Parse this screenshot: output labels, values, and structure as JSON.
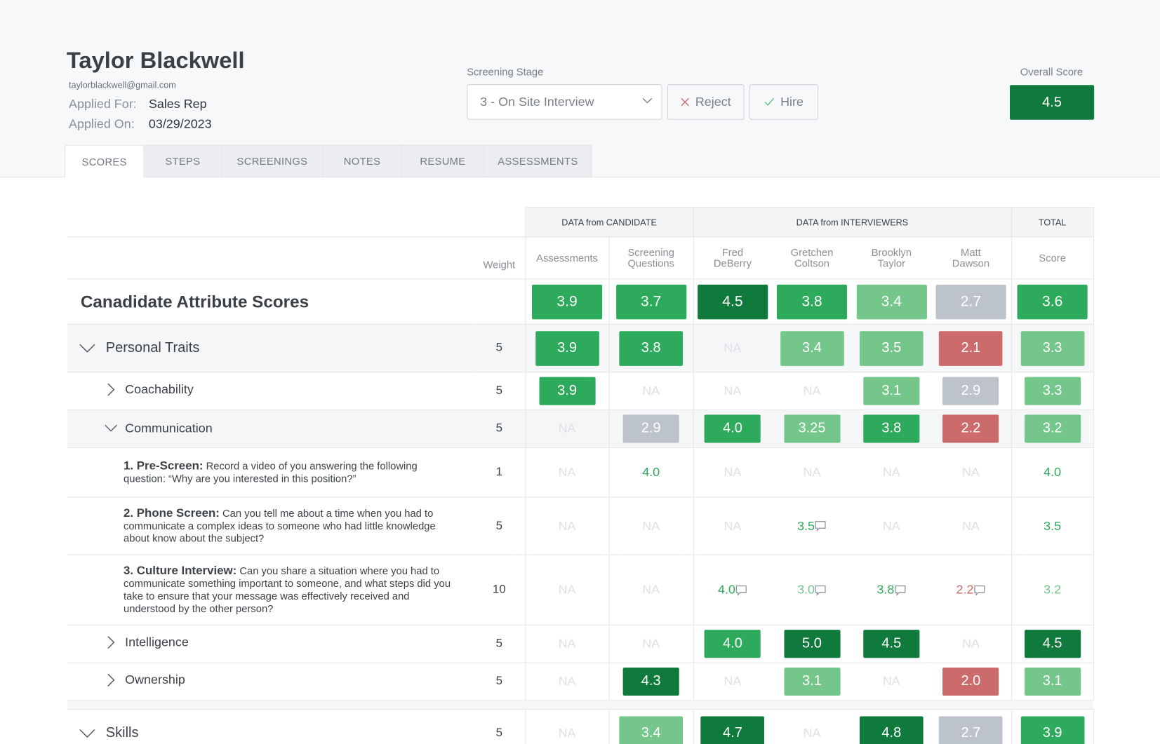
{
  "candidate": {
    "name": "Taylor Blackwell",
    "email": "taylorblackwell@gmail.com",
    "applied_for_label": "Applied For:",
    "applied_for": "Sales Rep",
    "applied_on_label": "Applied On:",
    "applied_on": "03/29/2023"
  },
  "stage": {
    "label": "Screening Stage",
    "value": "3 - On Site Interview"
  },
  "actions": {
    "reject": "Reject",
    "hire": "Hire"
  },
  "overall": {
    "label": "Overall Score",
    "value": "4.5"
  },
  "tabs": [
    "SCORES",
    "STEPS",
    "SCREENINGS",
    "NOTES",
    "RESUME",
    "ASSESSMENTS"
  ],
  "active_tab": "SCORES",
  "colors": {
    "dark": "#0f7a3c",
    "mid": "#2eaa5c",
    "light": "#74c68b",
    "gray": "#bcc3cb",
    "red": "#cc6b6b",
    "na": "#dde1e6"
  },
  "table": {
    "groups": {
      "candidate": "DATA from CANDIDATE",
      "interviewers": "DATA from INTERVIEWERS",
      "total": "TOTAL"
    },
    "weight_header": "Weight",
    "columns": [
      "Assessments",
      "Screening Questions",
      "Fred DeBerry",
      "Gretchen Coltson",
      "Brooklyn Taylor",
      "Matt Dawson",
      "Score"
    ],
    "rows": [
      {
        "type": "ov",
        "label": "Canadidate Attribute Scores",
        "weight": "",
        "cells": [
          [
            "3.9",
            "mid"
          ],
          [
            "3.7",
            "mid"
          ],
          [
            "4.5",
            "dark"
          ],
          [
            "3.8",
            "mid"
          ],
          [
            "3.4",
            "light"
          ],
          [
            "2.7",
            "gray"
          ],
          [
            "3.6",
            "mid"
          ]
        ]
      },
      {
        "type": "cat",
        "label": "Personal Traits",
        "expanded": true,
        "weight": "5",
        "cells": [
          [
            "3.9",
            "mid"
          ],
          [
            "3.8",
            "mid"
          ],
          [
            "NA",
            "na"
          ],
          [
            "3.4",
            "light"
          ],
          [
            "3.5",
            "light"
          ],
          [
            "2.1",
            "red"
          ],
          [
            "3.3",
            "light"
          ]
        ]
      },
      {
        "type": "sub",
        "label": "Coachability",
        "expanded": false,
        "weight": "5",
        "cells": [
          [
            "3.9",
            "mid"
          ],
          [
            "NA",
            "na"
          ],
          [
            "NA",
            "na"
          ],
          [
            "NA",
            "na"
          ],
          [
            "3.1",
            "light"
          ],
          [
            "2.9",
            "gray"
          ],
          [
            "3.3",
            "light"
          ]
        ]
      },
      {
        "type": "sub",
        "label": "Communication",
        "expanded": true,
        "weight": "5",
        "bg": true,
        "cells": [
          [
            "NA",
            "na"
          ],
          [
            "2.9",
            "gray"
          ],
          [
            "4.0",
            "mid"
          ],
          [
            "3.25",
            "light"
          ],
          [
            "3.8",
            "mid"
          ],
          [
            "2.2",
            "red"
          ],
          [
            "3.2",
            "light"
          ]
        ]
      },
      {
        "type": "q",
        "title": "1. Pre-Screen:",
        "text": "Record a video of you answering the following question: “Why are you interested in this position?”",
        "weight": "1",
        "cells": [
          [
            "NA",
            "na"
          ],
          [
            "4.0",
            "mid",
            "t"
          ],
          [
            "NA",
            "na"
          ],
          [
            "NA",
            "na"
          ],
          [
            "NA",
            "na"
          ],
          [
            "NA",
            "na"
          ],
          [
            "4.0",
            "mid",
            "t"
          ]
        ]
      },
      {
        "type": "q",
        "title": "2. Phone Screen:",
        "text": "Can you tell me about a time when you had to communicate a complex ideas to someone who had little knowledge about know about the subject?",
        "weight": "5",
        "cells": [
          [
            "NA",
            "na"
          ],
          [
            "NA",
            "na"
          ],
          [
            "NA",
            "na"
          ],
          [
            "3.5",
            "mid",
            "c"
          ],
          [
            "NA",
            "na"
          ],
          [
            "NA",
            "na"
          ],
          [
            "3.5",
            "mid",
            "t"
          ]
        ]
      },
      {
        "type": "q",
        "title": "3. Culture Interview:",
        "text": "Can you share a situation where you had to communicate something important to someone, and what steps did you take to ensure that your message was effectively received and understood by the other person?",
        "weight": "10",
        "cells": [
          [
            "NA",
            "na"
          ],
          [
            "NA",
            "na"
          ],
          [
            "4.0",
            "mid",
            "c"
          ],
          [
            "3.0",
            "light",
            "c"
          ],
          [
            "3.8",
            "mid",
            "c"
          ],
          [
            "2.2",
            "red",
            "c"
          ],
          [
            "3.2",
            "light",
            "t"
          ]
        ]
      },
      {
        "type": "sub",
        "label": "Intelligence",
        "expanded": false,
        "weight": "5",
        "cells": [
          [
            "NA",
            "na"
          ],
          [
            "NA",
            "na"
          ],
          [
            "4.0",
            "mid"
          ],
          [
            "5.0",
            "dark"
          ],
          [
            "4.5",
            "dark"
          ],
          [
            "NA",
            "na"
          ],
          [
            "4.5",
            "dark"
          ]
        ]
      },
      {
        "type": "sub",
        "label": "Ownership",
        "expanded": false,
        "weight": "5",
        "cells": [
          [
            "NA",
            "na"
          ],
          [
            "4.3",
            "dark"
          ],
          [
            "NA",
            "na"
          ],
          [
            "3.1",
            "light"
          ],
          [
            "NA",
            "na"
          ],
          [
            "2.0",
            "red"
          ],
          [
            "3.1",
            "light"
          ]
        ]
      },
      {
        "type": "gap"
      },
      {
        "type": "cat",
        "label": "Skills",
        "expanded": true,
        "weight": "5",
        "cells": [
          [
            "NA",
            "na"
          ],
          [
            "3.4",
            "light"
          ],
          [
            "4.7",
            "dark"
          ],
          [
            "NA",
            "na"
          ],
          [
            "4.8",
            "dark"
          ],
          [
            "2.7",
            "gray"
          ],
          [
            "3.9",
            "mid"
          ]
        ]
      }
    ]
  }
}
